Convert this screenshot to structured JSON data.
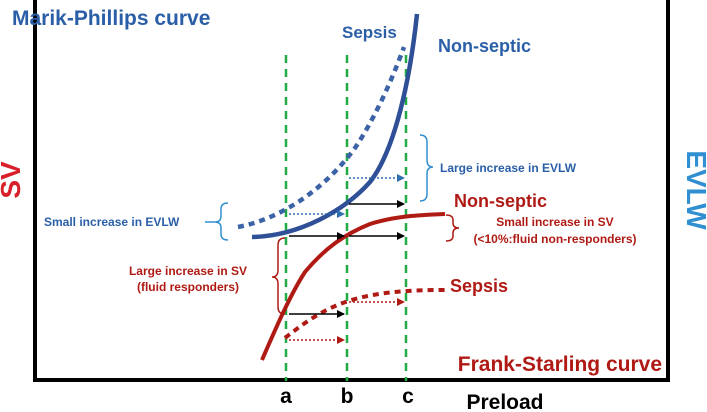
{
  "titles": {
    "marik_phillips": "Marik-Phillips curve",
    "frank_starling": "Frank-Starling curve"
  },
  "axes": {
    "left_label": "SV",
    "right_label": "EVLW",
    "x_label": "Preload",
    "markers": [
      "a",
      "b",
      "c"
    ]
  },
  "curve_labels": {
    "mp_sepsis": "Sepsis",
    "mp_non_septic": "Non-septic",
    "fs_non_septic": "Non-septic",
    "fs_sepsis": "Sepsis"
  },
  "annotations": {
    "large_evlw": "Large increase in EVLW",
    "small_evlw": "Small increase in EVLW",
    "small_sv_line1": "Small increase in SV",
    "small_sv_line2": "(<10%:fluid non-responders)",
    "large_sv_line1": "Large increase in SV",
    "large_sv_line2": "(fluid responders)"
  },
  "colors": {
    "blue": "#2a5fa8",
    "curve_blue": "#2f4f97",
    "dotted_blue": "#3d63a7",
    "red": "#b01a14",
    "green": "#22aa44",
    "black": "#000000",
    "cyan": "#2f8fd0"
  }
}
